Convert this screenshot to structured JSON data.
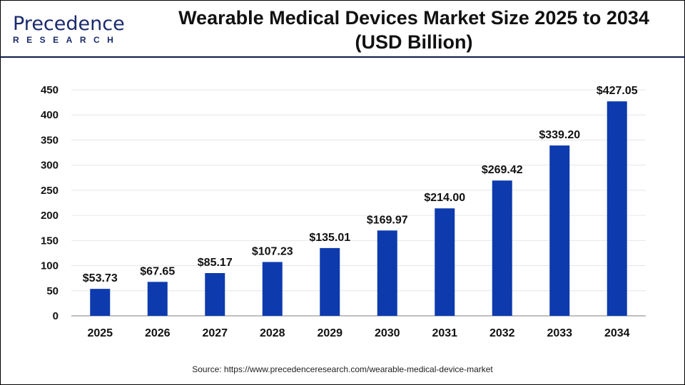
{
  "logo": {
    "brand": "Precedence",
    "sub": "RESEARCH"
  },
  "header": {
    "title_line1": "Wearable Medical Devices Market Size 2025 to 2034",
    "title_line2": "(USD Billion)"
  },
  "source": "Source: https://www.precedenceresearch.com/wearable-medical-device-market",
  "chart_data": {
    "type": "bar",
    "title": "Wearable Medical Devices Market Size 2025 to 2034 (USD Billion)",
    "categories": [
      "2025",
      "2026",
      "2027",
      "2028",
      "2029",
      "2030",
      "2031",
      "2032",
      "2033",
      "2034"
    ],
    "values": [
      53.73,
      67.65,
      85.17,
      107.23,
      135.01,
      169.97,
      214.0,
      269.42,
      339.2,
      427.05
    ],
    "data_labels": [
      "$53.73",
      "$67.65",
      "$85.17",
      "$107.23",
      "$135.01",
      "$169.97",
      "$214.00",
      "$269.42",
      "$339.20",
      "$427.05"
    ],
    "yticks": [
      0,
      50,
      100,
      150,
      200,
      250,
      300,
      350,
      400,
      450
    ],
    "ylim": [
      0,
      450
    ],
    "grid": true,
    "bar_color": "#0d3aad",
    "xlabel": "",
    "ylabel": ""
  }
}
